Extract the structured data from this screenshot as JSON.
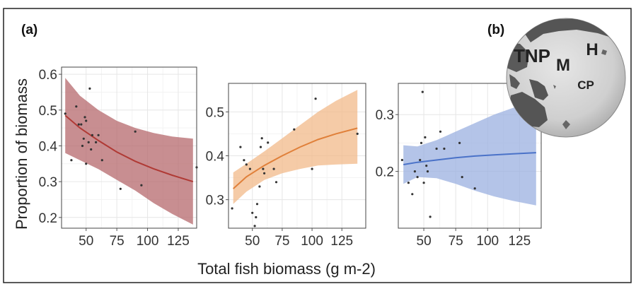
{
  "labels": {
    "panel_a": "(a)",
    "panel_b": "(b)"
  },
  "chart_data": [
    {
      "type": "scatter",
      "panel": "a",
      "xlabel": "Total fish biomass (g m-2)",
      "ylabel": "Proportion of biomass",
      "xlim": [
        30,
        140
      ],
      "ylim": [
        0.17,
        0.62
      ],
      "xticks": [
        50,
        75,
        100,
        125
      ],
      "yticks": [
        0.2,
        0.3,
        0.4,
        0.5,
        0.6
      ],
      "ytick_labels": [
        "0.2",
        "0.3",
        "0.4",
        "0.5",
        "0.6"
      ],
      "colors": {
        "fill": "#b5686c",
        "line": "#b03a35",
        "point": "#333333"
      },
      "points": {
        "x": [
          33,
          38,
          42,
          44,
          46,
          47,
          48,
          49,
          50,
          50,
          52,
          53,
          54,
          55,
          58,
          60,
          63,
          78,
          90,
          95,
          140
        ],
        "y": [
          0.49,
          0.36,
          0.51,
          0.46,
          0.46,
          0.4,
          0.42,
          0.48,
          0.47,
          0.35,
          0.41,
          0.56,
          0.39,
          0.43,
          0.41,
          0.43,
          0.36,
          0.28,
          0.44,
          0.29,
          0.34
        ]
      },
      "fit": {
        "x": [
          33,
          45,
          60,
          75,
          90,
          105,
          120,
          137
        ],
        "y": [
          0.485,
          0.45,
          0.415,
          0.383,
          0.357,
          0.336,
          0.318,
          0.3
        ]
      },
      "ci_upper": [
        0.59,
        0.54,
        0.5,
        0.47,
        0.45,
        0.436,
        0.426,
        0.42
      ],
      "ci_lower": [
        0.38,
        0.36,
        0.335,
        0.305,
        0.275,
        0.24,
        0.21,
        0.18
      ]
    },
    {
      "type": "scatter",
      "panel": "a",
      "xlim": [
        30,
        145
      ],
      "ylim": [
        0.235,
        0.565
      ],
      "xticks": [
        50,
        75,
        100,
        125
      ],
      "yticks": [
        0.3,
        0.4,
        0.5
      ],
      "ytick_labels": [
        "0.3",
        "0.4",
        "0.5"
      ],
      "colors": {
        "fill": "#f2b98a",
        "line": "#e0803a",
        "point": "#333333"
      },
      "points": {
        "x": [
          33,
          40,
          43,
          45,
          48,
          50,
          52,
          53,
          54,
          56,
          57,
          58,
          59,
          60,
          63,
          68,
          70,
          85,
          100,
          103,
          138
        ],
        "y": [
          0.28,
          0.42,
          0.39,
          0.38,
          0.37,
          0.27,
          0.24,
          0.26,
          0.29,
          0.33,
          0.42,
          0.44,
          0.37,
          0.36,
          0.43,
          0.37,
          0.34,
          0.46,
          0.37,
          0.53,
          0.45
        ]
      },
      "fit": {
        "x": [
          34,
          45,
          60,
          75,
          90,
          105,
          120,
          138
        ],
        "y": [
          0.325,
          0.352,
          0.378,
          0.4,
          0.42,
          0.437,
          0.45,
          0.463
        ]
      },
      "ci_upper": [
        0.362,
        0.382,
        0.41,
        0.44,
        0.47,
        0.5,
        0.525,
        0.55
      ],
      "ci_lower": [
        0.29,
        0.318,
        0.345,
        0.36,
        0.37,
        0.378,
        0.38,
        0.382
      ]
    },
    {
      "type": "scatter",
      "panel": "a",
      "xlim": [
        30,
        142
      ],
      "ylim": [
        0.1,
        0.355
      ],
      "xticks": [
        50,
        75,
        100,
        125
      ],
      "yticks": [
        0.2,
        0.3
      ],
      "ytick_labels": [
        "0.2",
        "0.3"
      ],
      "colors": {
        "fill": "#9bb0e0",
        "line": "#4a72c8",
        "point": "#333333"
      },
      "points": {
        "x": [
          33,
          38,
          41,
          43,
          45,
          47,
          48,
          49,
          50,
          51,
          52,
          53,
          55,
          60,
          63,
          66,
          78,
          80,
          90,
          140
        ],
        "y": [
          0.22,
          0.18,
          0.16,
          0.2,
          0.19,
          0.22,
          0.25,
          0.34,
          0.18,
          0.26,
          0.21,
          0.2,
          0.12,
          0.24,
          0.27,
          0.24,
          0.25,
          0.19,
          0.17,
          0.28
        ]
      },
      "fit": {
        "x": [
          34,
          45,
          60,
          75,
          90,
          105,
          120,
          138
        ],
        "y": [
          0.212,
          0.216,
          0.22,
          0.224,
          0.227,
          0.229,
          0.231,
          0.233
        ]
      },
      "ci_upper": [
        0.246,
        0.244,
        0.255,
        0.27,
        0.285,
        0.3,
        0.312,
        0.322
      ],
      "ci_lower": [
        0.178,
        0.19,
        0.188,
        0.178,
        0.166,
        0.156,
        0.148,
        0.14
      ]
    }
  ],
  "map": {
    "sites": [
      {
        "label": "TNP"
      },
      {
        "label": "M"
      },
      {
        "label": "H"
      },
      {
        "label": "CP"
      }
    ]
  }
}
